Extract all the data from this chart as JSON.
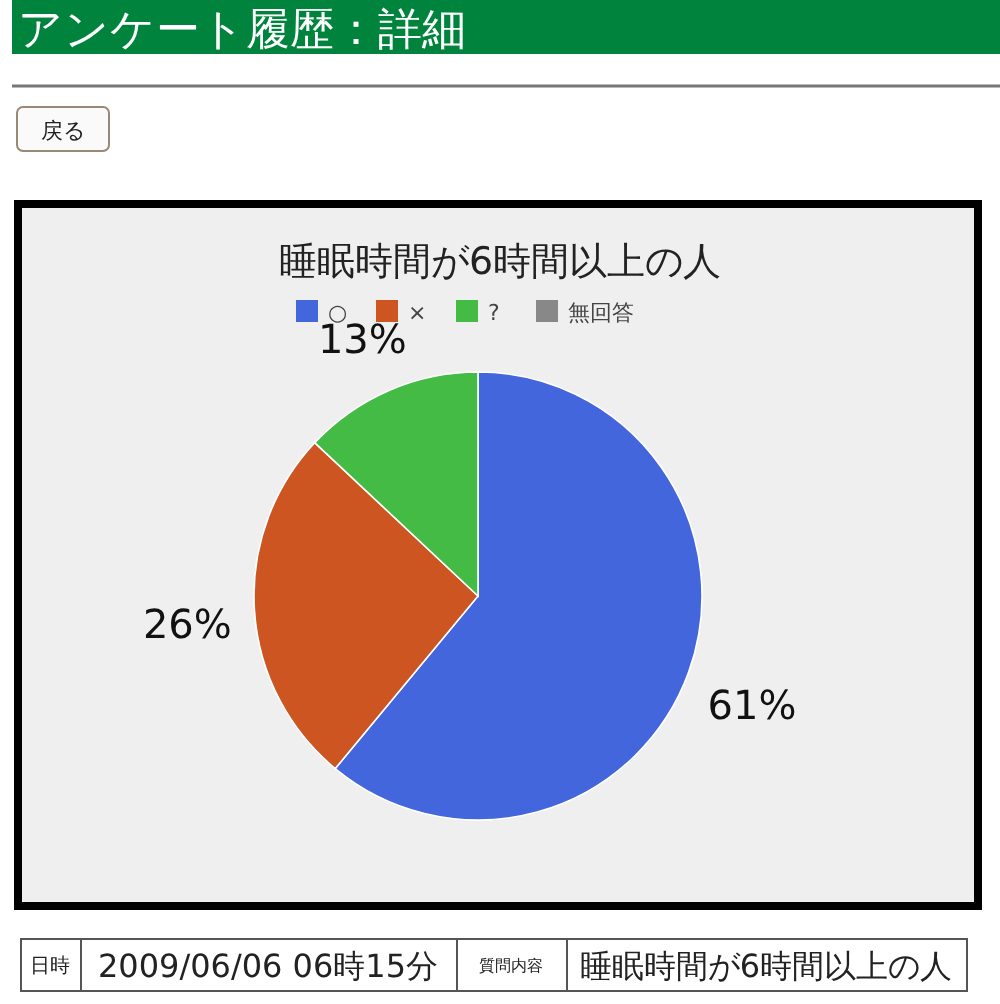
{
  "chart_data": {
    "type": "pie",
    "title": "睡眠時間が6時間以上の人",
    "categories": [
      "○",
      "×",
      "?",
      "無回答"
    ],
    "values": [
      61,
      26,
      13,
      0
    ],
    "value_labels": [
      "61%",
      "26%",
      "13%",
      null
    ],
    "colors": [
      "#4466dd",
      "#cc5522",
      "#44bb44",
      "#888888"
    ],
    "legend": "top",
    "annotations": [
      "アンケート履歴：詳細",
      "戻る",
      "日時",
      "2009/06/06 06時15分",
      "質問内容",
      "睡眠時間が6時間以上の人"
    ]
  }
}
